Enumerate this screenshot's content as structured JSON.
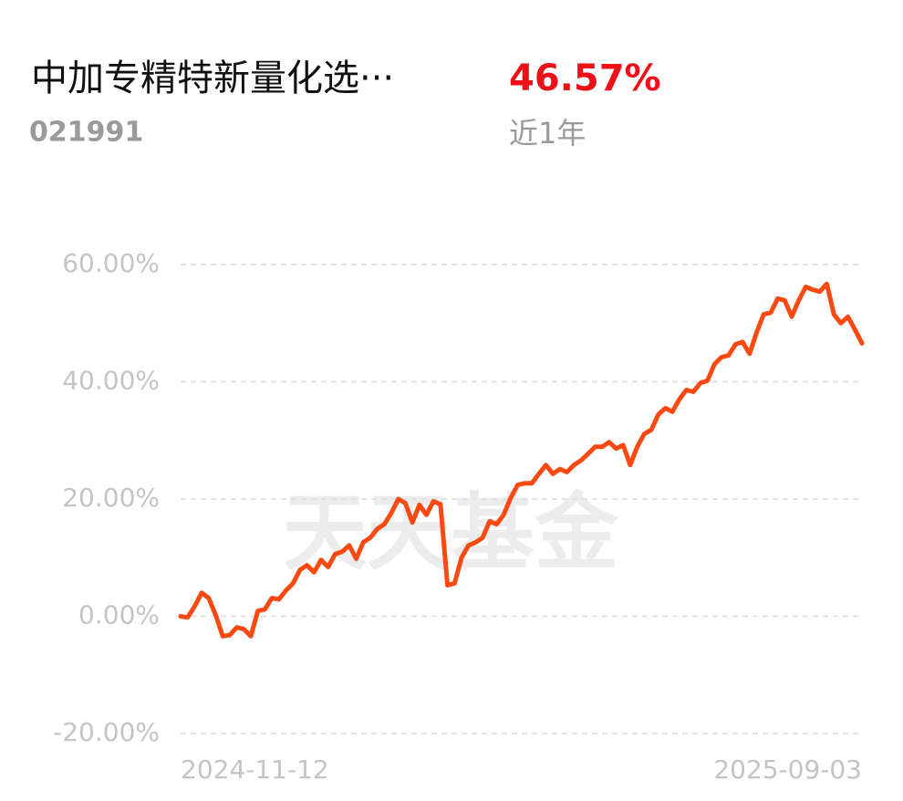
{
  "header": {
    "title": "中加专精特新量化选···",
    "code": "021991",
    "return": "46.57%",
    "period": "近1年"
  },
  "watermark": "天天基金",
  "chart_data": {
    "type": "line",
    "categories": [
      "2024-11-12",
      null,
      null,
      null,
      null,
      null,
      null,
      null,
      null,
      null,
      null,
      null,
      null,
      null,
      null,
      null,
      null,
      null,
      null,
      null,
      null,
      null,
      null,
      null,
      null,
      null,
      null,
      null,
      null,
      null,
      null,
      null,
      null,
      null,
      null,
      null,
      null,
      null,
      null,
      null,
      null,
      null,
      null,
      null,
      null,
      null,
      null,
      null,
      null,
      null,
      null,
      null,
      null,
      null,
      null,
      null,
      null,
      null,
      null,
      null,
      null,
      null,
      null,
      null,
      null,
      null,
      null,
      null,
      null,
      null,
      null,
      null,
      null,
      null,
      null,
      null,
      null,
      null,
      null,
      null,
      null,
      null,
      null,
      null,
      null,
      null,
      null,
      null,
      null,
      null,
      null,
      null,
      null,
      null,
      null,
      null,
      null,
      "2025-09-03"
    ],
    "values": [
      0,
      -0.2,
      1.7,
      4,
      3.1,
      0.2,
      -3.4,
      -3.2,
      -1.9,
      -2.2,
      -3.4,
      0.9,
      1.2,
      3.1,
      2.9,
      4.4,
      5.6,
      7.9,
      8.7,
      7.5,
      9.6,
      8.4,
      10.6,
      11,
      12.1,
      9.8,
      12.6,
      13.4,
      14.9,
      15.7,
      17.6,
      20,
      19.3,
      16,
      19,
      17.3,
      19.6,
      19.1,
      5.3,
      5.6,
      10,
      12.1,
      12.6,
      13.4,
      16.2,
      15.7,
      17.3,
      20.2,
      22.4,
      22.7,
      22.7,
      24.3,
      25.8,
      24.3,
      25.1,
      24.6,
      25.8,
      26.6,
      27.7,
      28.9,
      28.9,
      29.7,
      28.6,
      29.2,
      25.8,
      28.9,
      31.1,
      31.8,
      34.4,
      35.5,
      34.9,
      37,
      38.6,
      38.3,
      39.8,
      40.2,
      43,
      44.2,
      44.5,
      46.4,
      46.8,
      44.8,
      48.4,
      51.5,
      51.8,
      54.2,
      53.9,
      51.1,
      53.9,
      56.2,
      55.7,
      55.4,
      56.7,
      51.5,
      50,
      51.1,
      48.9,
      46.57
    ],
    "color": "#fa4a12",
    "ylim": [
      -20,
      60
    ],
    "yticks": [
      {
        "value": -20,
        "label": "-20.00%"
      },
      {
        "value": 0,
        "label": "0.00%"
      },
      {
        "value": 20,
        "label": "20.00%"
      },
      {
        "value": 40,
        "label": "40.00%"
      },
      {
        "value": 60,
        "label": "60.00%"
      }
    ],
    "grid": true
  }
}
